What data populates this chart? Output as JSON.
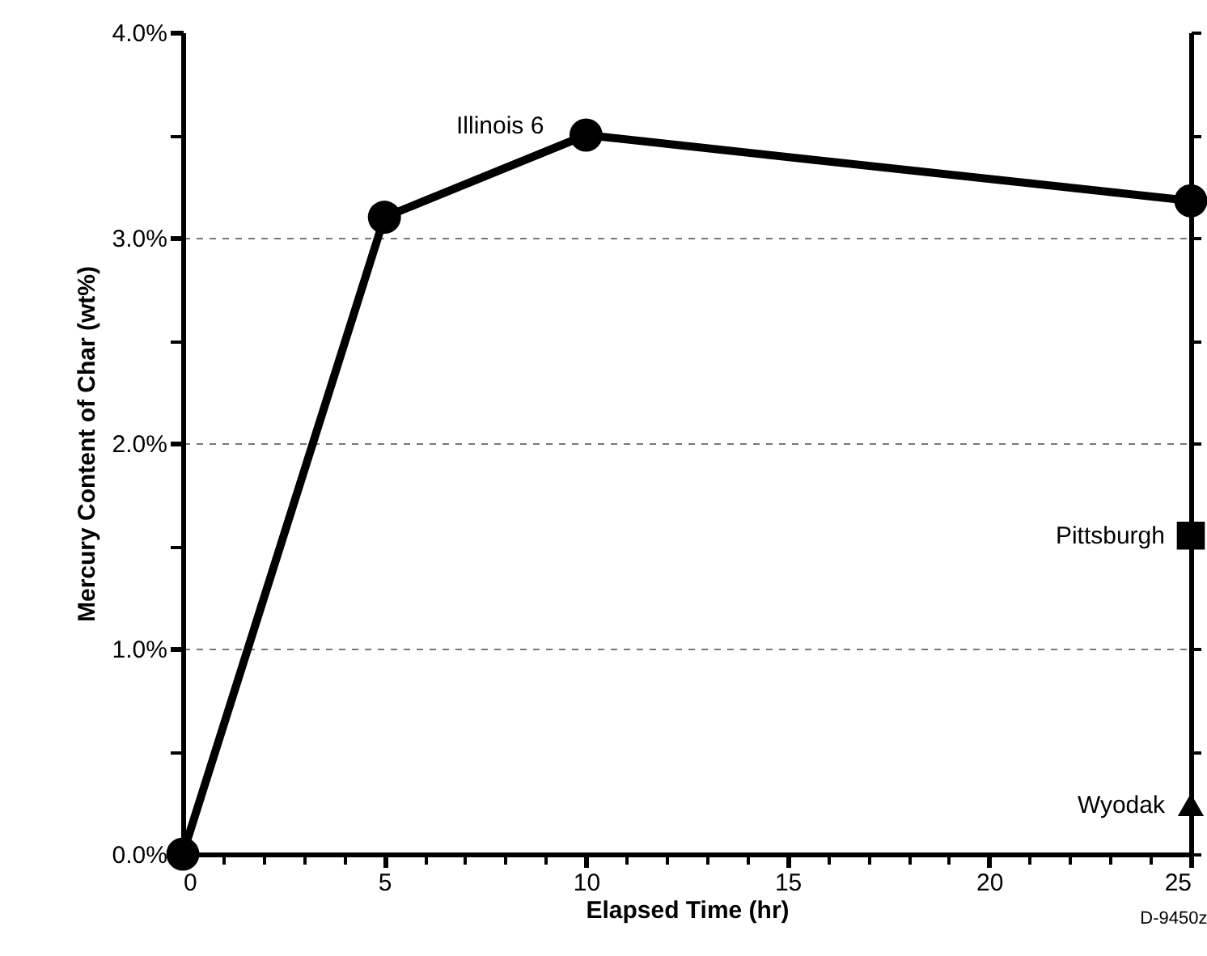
{
  "chart_data": {
    "type": "line",
    "xlabel": "Elapsed Time (hr)",
    "ylabel": "Mercury Content of Char (wt%)",
    "xlim": [
      0,
      25
    ],
    "xticks": [
      0,
      5,
      10,
      15,
      20,
      25
    ],
    "ylim": [
      0,
      4
    ],
    "yticks": [
      {
        "value": 0,
        "label": "0.0%"
      },
      {
        "value": 1,
        "label": "1.0%"
      },
      {
        "value": 2,
        "label": "2.0%"
      },
      {
        "value": 3,
        "label": "3.0%"
      },
      {
        "value": 4,
        "label": "4.0%"
      }
    ],
    "grid": "y",
    "annotations": [
      "D-9450z"
    ],
    "series": [
      {
        "name": "Illinois 6",
        "marker": "circle",
        "color": "#000000",
        "x": [
          0,
          5,
          10,
          25
        ],
        "values": [
          0,
          3.1,
          3.5,
          3.18
        ]
      },
      {
        "name": "Pittsburgh",
        "type": "scatter",
        "marker": "square",
        "color": "#000000",
        "x": [
          25
        ],
        "values": [
          1.55
        ]
      },
      {
        "name": "Wyodak",
        "type": "scatter",
        "marker": "triangle",
        "color": "#000000",
        "x": [
          25
        ],
        "values": [
          0.24
        ]
      }
    ]
  }
}
